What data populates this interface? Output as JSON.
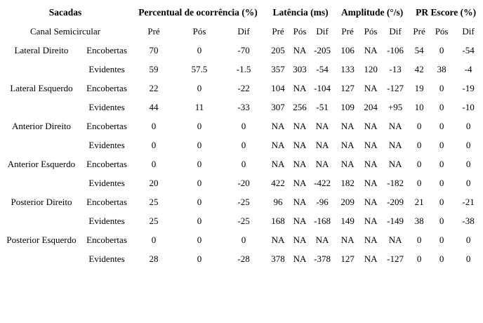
{
  "table": {
    "title": "Sacadas",
    "row_header": "Canal Semicircular",
    "groups": [
      "Percentual de ocorrência (%)",
      "Latência (ms)",
      "Amplitude (°/s)",
      "PR Escore (%)"
    ],
    "subheaders": [
      "Pré",
      "Pós",
      "Dif",
      "Pré",
      "Pós",
      "Dif",
      "Pré",
      "Pós",
      "Dif",
      "Pré",
      "Pós",
      "Dif"
    ],
    "rows": [
      {
        "canal": "Lateral Direito",
        "tipo": "Encobertas",
        "values": [
          "70",
          "0",
          "-70",
          "205",
          "NA",
          "-205",
          "106",
          "NA",
          "-106",
          "54",
          "0",
          "-54"
        ]
      },
      {
        "canal": "",
        "tipo": "Evidentes",
        "values": [
          "59",
          "57.5",
          "-1.5",
          "357",
          "303",
          "-54",
          "133",
          "120",
          "-13",
          "42",
          "38",
          "-4"
        ]
      },
      {
        "canal": "Lateral Esquerdo",
        "tipo": "Encobertas",
        "values": [
          "22",
          "0",
          "-22",
          "104",
          "NA",
          "-104",
          "127",
          "NA",
          "-127",
          "19",
          "0",
          "-19"
        ]
      },
      {
        "canal": "",
        "tipo": "Evidentes",
        "values": [
          "44",
          "11",
          "-33",
          "307",
          "256",
          "-51",
          "109",
          "204",
          "+95",
          "10",
          "0",
          "-10"
        ]
      },
      {
        "canal": "Anterior Direito",
        "tipo": "Encobertas",
        "values": [
          "0",
          "0",
          "0",
          "NA",
          "NA",
          "NA",
          "NA",
          "NA",
          "NA",
          "0",
          "0",
          "0"
        ]
      },
      {
        "canal": "",
        "tipo": "Evidentes",
        "values": [
          "0",
          "0",
          "0",
          "NA",
          "NA",
          "NA",
          "NA",
          "NA",
          "NA",
          "0",
          "0",
          "0"
        ]
      },
      {
        "canal": "Anterior Esquerdo",
        "tipo": "Encobertas",
        "values": [
          "0",
          "0",
          "0",
          "NA",
          "NA",
          "NA",
          "NA",
          "NA",
          "NA",
          "0",
          "0",
          "0"
        ]
      },
      {
        "canal": "",
        "tipo": "Evidentes",
        "values": [
          "20",
          "0",
          "-20",
          "422",
          "NA",
          "-422",
          "182",
          "NA",
          "-182",
          "0",
          "0",
          "0"
        ]
      },
      {
        "canal": "Posterior Direito",
        "tipo": "Encobertas",
        "values": [
          "25",
          "0",
          "-25",
          "96",
          "NA",
          "-96",
          "209",
          "NA",
          "-209",
          "21",
          "0",
          "-21"
        ]
      },
      {
        "canal": "",
        "tipo": "Evidentes",
        "values": [
          "25",
          "0",
          "-25",
          "168",
          "NA",
          "-168",
          "149",
          "NA",
          "-149",
          "38",
          "0",
          "-38"
        ]
      },
      {
        "canal": "Posterior Esquerdo",
        "tipo": "Encobertas",
        "values": [
          "0",
          "0",
          "0",
          "NA",
          "NA",
          "NA",
          "NA",
          "NA",
          "NA",
          "0",
          "0",
          "0"
        ]
      },
      {
        "canal": "",
        "tipo": "Evidentes",
        "values": [
          "28",
          "0",
          "-28",
          "378",
          "NA",
          "-378",
          "127",
          "NA",
          "-127",
          "0",
          "0",
          "0"
        ]
      }
    ]
  },
  "colors": {
    "text": "#000000",
    "background": "#ffffff"
  }
}
